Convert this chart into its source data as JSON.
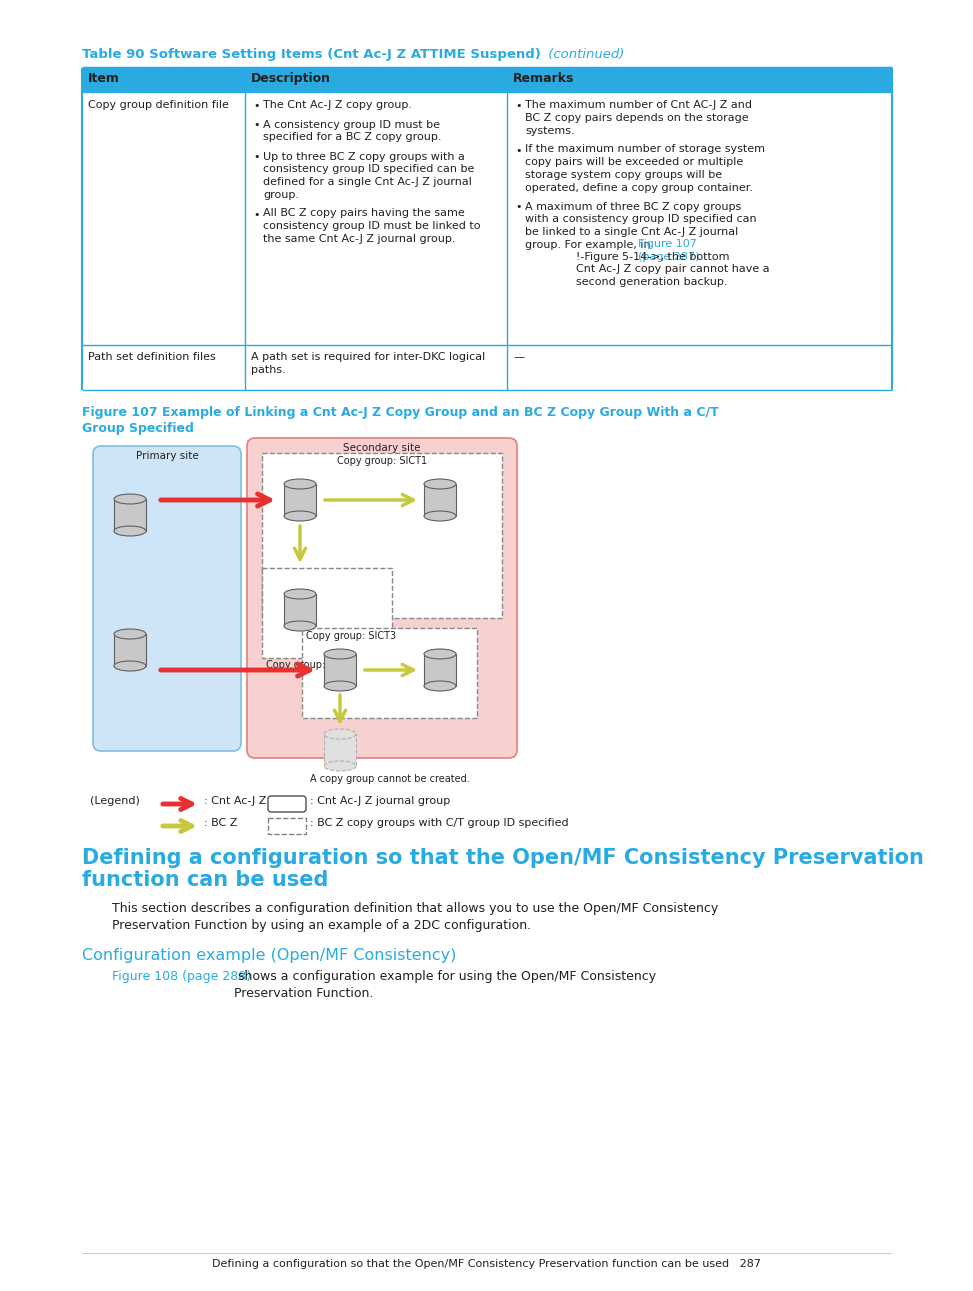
{
  "page_bg": "#ffffff",
  "cyan": "#29abe2",
  "text_color": "#231f20",
  "table_border": "#29abe2",
  "title_bold": "Table 90 Software Setting Items (Cnt Ac-J Z ATTIME Suspend)",
  "title_italic": " (continued)",
  "col1_header": "Item",
  "col2_header": "Description",
  "col3_header": "Remarks",
  "row1_col1": "Copy group definition file",
  "row1_col2_b1": "The Cnt Ac-J Z copy group.",
  "row1_col2_b2": "A consistency group ID must be\nspecified for a BC Z copy group.",
  "row1_col2_b3": "Up to three BC Z copy groups with a\nconsistency group ID specified can be\ndefined for a single Cnt Ac-J Z journal\ngroup.",
  "row1_col2_b4": "All BC Z copy pairs having the same\nconsistency group ID must be linked to\nthe same Cnt Ac-J Z journal group.",
  "row1_col3_b1": "The maximum number of Cnt AC-J Z and\nBC Z copy pairs depends on the storage\nsystems.",
  "row1_col3_b2": "If the maximum number of storage system\ncopy pairs will be exceeded or multiple\nstorage system copy groups will be\noperated, define a copy group container.",
  "row1_col3_b3_pre": "A maximum of three BC Z copy groups\nwith a consistency group ID specified can\nbe linked to a single Cnt Ac-J Z journal\ngroup. For example, in ",
  "row1_col3_b3_link": "Figure 107\n(page 287)",
  "row1_col3_b3_post": "!-Figure 5-14->, the bottom\nCnt Ac-J Z copy pair cannot have a\nsecond generation backup.",
  "row2_col1": "Path set definition files",
  "row2_col2": "A path set is required for inter-DKC logical\npaths.",
  "row2_col3": "—",
  "fig_caption_1": "Figure 107 Example of Linking a Cnt Ac-J Z Copy Group and an BC Z Copy Group With a C/T",
  "fig_caption_2": "Group Specified",
  "primary_site": "Primary site",
  "secondary_site": "Secondary site",
  "sict1": "Copy group: SICT1",
  "sict2": "Copy group: SICT2",
  "sict3": "Copy group: SICT3",
  "cannot_create": "A copy group cannot be created.",
  "legend_label": "(Legend)",
  "leg1_text": ": Cnt Ac-J Z",
  "leg1_rect": ": Cnt Ac-J Z journal group",
  "leg2_text": ": BC Z",
  "leg2_rect": ": BC Z copy groups with C/T group ID specified",
  "section_line1": "Defining a configuration so that the Open/MF Consistency Preservation",
  "section_line2": "function can be used",
  "body1": "This section describes a configuration definition that allows you to use the Open/MF Consistency\nPreservation Function by using an example of a 2DC configuration.",
  "subsec": "Configuration example (Open/MF Consistency)",
  "body2_link": "Figure 108 (page 288)",
  "body2_rest": " shows a configuration example for using the Open/MF Consistency\nPreservation Function.",
  "footer": "Defining a configuration so that the Open/MF Consistency Preservation function can be used   287",
  "cyl_color": "#c8c8c8",
  "cyl_edge": "#606060",
  "cyl_ghost": "#d8d8d8",
  "ps_fill": "#cde5f7",
  "ps_edge": "#7fbfe0",
  "ss_fill": "#f7d0d0",
  "ss_edge": "#e08080",
  "red_arrow": "#e83030",
  "yel_arrow": "#c8c840"
}
